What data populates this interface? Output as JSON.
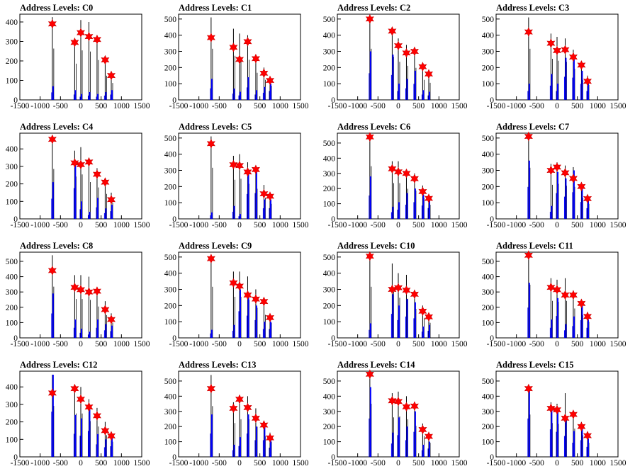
{
  "chart_data": [
    {
      "type": "bar",
      "title": "Address Levels: C0",
      "xlim": [
        -1500,
        1500
      ],
      "ylim": [
        0,
        440
      ],
      "yticks": [
        0,
        100,
        200,
        300,
        400
      ],
      "xticks": [
        -1500,
        -1000,
        -500,
        0,
        500,
        1000,
        1500
      ],
      "peaks_x": [
        -700,
        -150,
        0,
        200,
        400,
        600,
        750
      ],
      "peak_black": [
        425,
        300,
        410,
        400,
        330,
        200,
        140
      ],
      "peak_blue": [
        70,
        50,
        30,
        40,
        30,
        40,
        50
      ],
      "stars": [
        390,
        295,
        345,
        325,
        310,
        205,
        125
      ]
    },
    {
      "type": "bar",
      "title": "Address Levels: C1",
      "xlim": [
        -1500,
        1500
      ],
      "ylim": [
        0,
        530
      ],
      "yticks": [
        0,
        100,
        200,
        300,
        400,
        500
      ],
      "xticks": [
        -1500,
        -1000,
        -500,
        0,
        500,
        1000,
        1500
      ],
      "peaks_x": [
        -700,
        -150,
        0,
        200,
        400,
        600,
        750
      ],
      "peak_black": [
        510,
        440,
        410,
        400,
        270,
        200,
        140
      ],
      "peak_blue": [
        130,
        70,
        50,
        140,
        60,
        80,
        100
      ],
      "stars": [
        385,
        325,
        250,
        360,
        255,
        165,
        120
      ]
    },
    {
      "type": "bar",
      "title": "Address Levels: C2",
      "xlim": [
        -1500,
        1500
      ],
      "ylim": [
        0,
        530
      ],
      "yticks": [
        0,
        100,
        200,
        300,
        400,
        500
      ],
      "xticks": [
        -1500,
        -1000,
        -500,
        0,
        500,
        1000,
        1500
      ],
      "peaks_x": [
        -700,
        -150,
        0,
        200,
        400,
        600,
        750
      ],
      "peak_black": [
        510,
        430,
        380,
        340,
        320,
        200,
        170
      ],
      "peak_blue": [
        300,
        280,
        100,
        130,
        180,
        60,
        50
      ],
      "stars": [
        500,
        425,
        335,
        290,
        300,
        205,
        160
      ]
    },
    {
      "type": "bar",
      "title": "Address Levels: C3",
      "xlim": [
        -1500,
        1500
      ],
      "ylim": [
        0,
        530
      ],
      "yticks": [
        0,
        100,
        200,
        300,
        400,
        500
      ],
      "xticks": [
        -1500,
        -1000,
        -500,
        0,
        500,
        1000,
        1500
      ],
      "peaks_x": [
        -700,
        -150,
        0,
        200,
        400,
        600,
        750
      ],
      "peak_black": [
        510,
        410,
        390,
        380,
        310,
        200,
        150
      ],
      "peak_blue": [
        100,
        160,
        100,
        260,
        250,
        180,
        100
      ],
      "stars": [
        420,
        350,
        305,
        310,
        265,
        215,
        115
      ]
    },
    {
      "type": "bar",
      "title": "Address Levels: C4",
      "xlim": [
        -1500,
        1500
      ],
      "ylim": [
        0,
        490
      ],
      "yticks": [
        0,
        100,
        200,
        300,
        400
      ],
      "xticks": [
        -1500,
        -1000,
        -500,
        0,
        500,
        1000,
        1500
      ],
      "peaks_x": [
        -700,
        -150,
        0,
        200,
        400,
        600,
        750
      ],
      "peak_black": [
        460,
        390,
        410,
        340,
        290,
        230,
        150
      ],
      "peak_blue": [
        210,
        320,
        100,
        40,
        120,
        60,
        80
      ],
      "stars": [
        455,
        320,
        310,
        325,
        255,
        210,
        110
      ]
    },
    {
      "type": "bar",
      "title": "Address Levels: C5",
      "xlim": [
        -1500,
        1500
      ],
      "ylim": [
        0,
        530
      ],
      "yticks": [
        0,
        100,
        200,
        300,
        400,
        500
      ],
      "xticks": [
        -1500,
        -1000,
        -500,
        0,
        500,
        1000,
        1500
      ],
      "peaks_x": [
        -700,
        -150,
        0,
        200,
        400,
        600,
        750
      ],
      "peak_black": [
        510,
        390,
        400,
        350,
        300,
        210,
        150
      ],
      "peak_blue": [
        40,
        80,
        30,
        280,
        290,
        120,
        120
      ],
      "stars": [
        465,
        335,
        330,
        290,
        305,
        155,
        140
      ]
    },
    {
      "type": "bar",
      "title": "Address Levels: C6",
      "xlim": [
        -1500,
        1500
      ],
      "ylim": [
        0,
        565
      ],
      "yticks": [
        0,
        100,
        200,
        300,
        400,
        500
      ],
      "xticks": [
        -1500,
        -1000,
        -500,
        0,
        500,
        1000,
        1500
      ],
      "peaks_x": [
        -700,
        -150,
        0,
        200,
        400,
        600,
        750
      ],
      "peak_black": [
        560,
        380,
        380,
        320,
        300,
        220,
        150
      ],
      "peak_blue": [
        280,
        80,
        110,
        170,
        200,
        160,
        130
      ],
      "stars": [
        540,
        330,
        310,
        300,
        265,
        180,
        135
      ]
    },
    {
      "type": "bar",
      "title": "Address Levels: C7",
      "xlim": [
        -1500,
        1500
      ],
      "ylim": [
        0,
        530
      ],
      "yticks": [
        0,
        100,
        200,
        300,
        400,
        500
      ],
      "xticks": [
        -1500,
        -1000,
        -500,
        0,
        500,
        1000,
        1500
      ],
      "peaks_x": [
        -700,
        -150,
        0,
        200,
        400,
        600,
        750
      ],
      "peak_black": [
        510,
        340,
        350,
        330,
        320,
        210,
        150
      ],
      "peak_blue": [
        360,
        80,
        290,
        250,
        300,
        190,
        120
      ],
      "stars": [
        510,
        300,
        320,
        285,
        250,
        200,
        125
      ]
    },
    {
      "type": "bar",
      "title": "Address Levels: C8",
      "xlim": [
        -1500,
        1500
      ],
      "ylim": [
        0,
        560
      ],
      "yticks": [
        0,
        100,
        200,
        300,
        400,
        500
      ],
      "xticks": [
        -1500,
        -1000,
        -500,
        0,
        500,
        1000,
        1500
      ],
      "peaks_x": [
        -700,
        -150,
        0,
        200,
        400,
        600,
        750
      ],
      "peak_black": [
        540,
        410,
        410,
        400,
        330,
        240,
        160
      ],
      "peak_blue": [
        290,
        120,
        60,
        40,
        120,
        90,
        80
      ],
      "stars": [
        440,
        330,
        315,
        300,
        305,
        185,
        120
      ]
    },
    {
      "type": "bar",
      "title": "Address Levels: C9",
      "xlim": [
        -1500,
        1500
      ],
      "ylim": [
        0,
        530
      ],
      "yticks": [
        0,
        100,
        200,
        300,
        400,
        500
      ],
      "xticks": [
        -1500,
        -1000,
        -500,
        0,
        500,
        1000,
        1500
      ],
      "peaks_x": [
        -700,
        -150,
        0,
        200,
        400,
        600,
        750
      ],
      "peak_black": [
        510,
        410,
        410,
        380,
        300,
        230,
        150
      ],
      "peak_blue": [
        50,
        80,
        300,
        250,
        200,
        100,
        100
      ],
      "stars": [
        490,
        340,
        320,
        265,
        240,
        225,
        125
      ]
    },
    {
      "type": "bar",
      "title": "Address Levels: C10",
      "xlim": [
        -1500,
        1500
      ],
      "ylim": [
        0,
        530
      ],
      "yticks": [
        0,
        100,
        200,
        300,
        400,
        500
      ],
      "xticks": [
        -1500,
        -1000,
        -500,
        0,
        500,
        1000,
        1500
      ],
      "peaks_x": [
        -700,
        -150,
        0,
        200,
        400,
        600,
        750
      ],
      "peak_black": [
        510,
        460,
        400,
        390,
        290,
        200,
        150
      ],
      "peak_blue": [
        90,
        270,
        200,
        240,
        220,
        70,
        80
      ],
      "stars": [
        505,
        300,
        310,
        295,
        270,
        165,
        130
      ]
    },
    {
      "type": "bar",
      "title": "Address Levels: C11",
      "xlim": [
        -1500,
        1500
      ],
      "ylim": [
        0,
        560
      ],
      "yticks": [
        0,
        100,
        200,
        300,
        400,
        500
      ],
      "xticks": [
        -1500,
        -1000,
        -500,
        0,
        500,
        1000,
        1500
      ],
      "peaks_x": [
        -700,
        -150,
        0,
        200,
        400,
        600,
        750
      ],
      "peak_black": [
        560,
        390,
        380,
        390,
        310,
        240,
        170
      ],
      "peak_blue": [
        360,
        120,
        260,
        90,
        140,
        210,
        120
      ],
      "stars": [
        540,
        330,
        315,
        280,
        280,
        225,
        140
      ]
    },
    {
      "type": "bar",
      "title": "Address Levels: C12",
      "xlim": [
        -1500,
        1500
      ],
      "ylim": [
        0,
        490
      ],
      "yticks": [
        0,
        100,
        200,
        300,
        400
      ],
      "xticks": [
        -1500,
        -1000,
        -500,
        0,
        500,
        1000,
        1500
      ],
      "peaks_x": [
        -700,
        -150,
        0,
        200,
        400,
        600,
        750
      ],
      "peak_black": [
        470,
        400,
        400,
        330,
        280,
        200,
        140
      ],
      "peak_blue": [
        470,
        240,
        220,
        270,
        130,
        100,
        110
      ],
      "stars": [
        365,
        390,
        330,
        285,
        235,
        150,
        120
      ]
    },
    {
      "type": "bar",
      "title": "Address Levels: C13",
      "xlim": [
        -1500,
        1500
      ],
      "ylim": [
        0,
        565
      ],
      "yticks": [
        0,
        100,
        200,
        300,
        400,
        500
      ],
      "xticks": [
        -1500,
        -1000,
        -500,
        0,
        500,
        1000,
        1500
      ],
      "peaks_x": [
        -700,
        -150,
        0,
        200,
        400,
        600,
        750
      ],
      "peak_black": [
        540,
        360,
        400,
        400,
        320,
        220,
        160
      ],
      "peak_blue": [
        280,
        80,
        130,
        280,
        200,
        200,
        110
      ],
      "stars": [
        450,
        320,
        380,
        325,
        255,
        210,
        125
      ]
    },
    {
      "type": "bar",
      "title": "Address Levels: C14",
      "xlim": [
        -1500,
        1500
      ],
      "ylim": [
        0,
        565
      ],
      "yticks": [
        0,
        100,
        200,
        300,
        400,
        500
      ],
      "xticks": [
        -1500,
        -1000,
        -500,
        0,
        500,
        1000,
        1500
      ],
      "peaks_x": [
        -700,
        -150,
        0,
        200,
        400,
        600,
        750
      ],
      "peak_black": [
        565,
        420,
        430,
        400,
        330,
        220,
        150
      ],
      "peak_blue": [
        460,
        160,
        260,
        200,
        300,
        80,
        100
      ],
      "stars": [
        545,
        370,
        365,
        330,
        335,
        180,
        135
      ]
    },
    {
      "type": "bar",
      "title": "Address Levels: C15",
      "xlim": [
        -1500,
        1500
      ],
      "ylim": [
        0,
        565
      ],
      "yticks": [
        0,
        100,
        200,
        300,
        400,
        500
      ],
      "xticks": [
        -1500,
        -1000,
        -500,
        0,
        500,
        1000,
        1500
      ],
      "peaks_x": [
        -700,
        -150,
        0,
        200,
        400,
        600,
        750
      ],
      "peak_black": [
        450,
        360,
        350,
        420,
        300,
        230,
        150
      ],
      "peak_blue": [
        460,
        330,
        300,
        250,
        170,
        200,
        120
      ],
      "stars": [
        450,
        320,
        310,
        255,
        280,
        200,
        140
      ]
    }
  ],
  "colors": {
    "primary_bars": "#000000",
    "secondary_bars": "#0000ff",
    "marker_fill": "#ff0000",
    "marker_stroke": "#cc0000",
    "axis": "#000000"
  }
}
